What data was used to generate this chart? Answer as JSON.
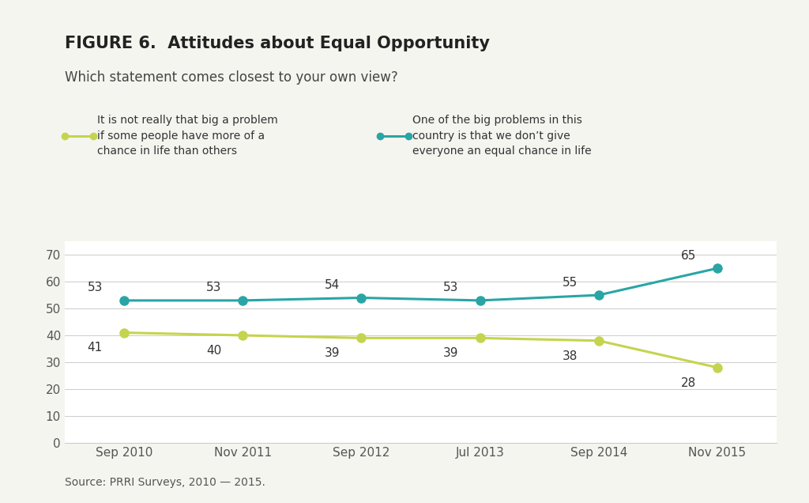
{
  "title_bold": "FIGURE 6.  Attitudes about Equal Opportunity",
  "subtitle": "Which statement comes closest to your own view?",
  "source": "Source: PRRI Surveys, 2010 — 2015.",
  "x_labels": [
    "Sep 2010",
    "Nov 2011",
    "Sep 2012",
    "Jul 2013",
    "Sep 2014",
    "Nov 2015"
  ],
  "x_positions": [
    0,
    1,
    2,
    3,
    4,
    5
  ],
  "series_teal": {
    "label": "One of the big problems in this\ncountry is that we don’t give\neveryone an equal chance in life",
    "values": [
      53,
      53,
      54,
      53,
      55,
      65
    ],
    "color": "#2aa5a5",
    "marker": "o",
    "marker_face": "#2aa5a5"
  },
  "series_green": {
    "label": "It is not really that big a problem\nif some people have more of a\nchance in life than others",
    "values": [
      41,
      40,
      39,
      39,
      38,
      28
    ],
    "color": "#c5d44e",
    "marker": "o",
    "marker_face": "#c5d44e"
  },
  "ylim": [
    0,
    75
  ],
  "yticks": [
    0,
    10,
    20,
    30,
    40,
    50,
    60,
    70
  ],
  "background_color": "#f5f5f0",
  "plot_bg_color": "#ffffff",
  "title_fontsize": 15,
  "subtitle_fontsize": 12,
  "label_fontsize": 11,
  "tick_fontsize": 11,
  "source_fontsize": 10,
  "line_width": 2.2,
  "marker_size": 8
}
